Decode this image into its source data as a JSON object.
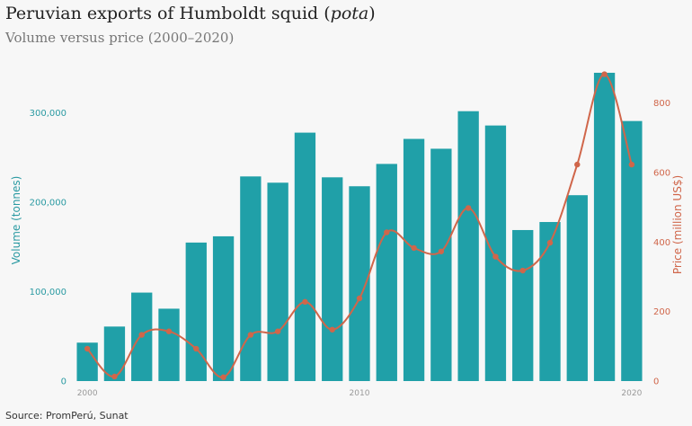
{
  "header": {
    "title_main": "Peruvian exports of Humboldt squid (",
    "title_italic": "pota",
    "title_end": ")",
    "subtitle": "Volume versus price (2000–2020)"
  },
  "footer": {
    "source": "Source: PromPerú, Sunat"
  },
  "colors": {
    "bar": "#20a0a8",
    "line": "#d0664a",
    "left_axis": "#2a9aa2",
    "right_axis": "#d0664a"
  },
  "chart_data": {
    "type": "bar",
    "x": [
      2000,
      2001,
      2002,
      2003,
      2004,
      2005,
      2006,
      2007,
      2008,
      2009,
      2010,
      2011,
      2012,
      2013,
      2014,
      2015,
      2016,
      2017,
      2018,
      2019,
      2020
    ],
    "xlabel": "",
    "x_ticks": [
      "2000",
      "2010",
      "2020"
    ],
    "x_tick_values": [
      2000,
      2010,
      2020
    ],
    "series": [
      {
        "name": "Volume (tonnes)",
        "type": "bar",
        "axis": "left",
        "values": [
          43000,
          61000,
          99000,
          81000,
          155000,
          162000,
          229000,
          222000,
          278000,
          228000,
          218000,
          243000,
          271000,
          260000,
          302000,
          286000,
          169000,
          178000,
          208000,
          345000,
          291000
        ]
      },
      {
        "name": "Price (million US$)",
        "type": "line",
        "axis": "right",
        "values": [
          93,
          13,
          133,
          143,
          93,
          11,
          133,
          143,
          228,
          148,
          238,
          428,
          383,
          373,
          498,
          358,
          318,
          398,
          623,
          883,
          623
        ]
      }
    ],
    "ylabel": "Volume (tonnes)",
    "ylim": [
      0,
      350000
    ],
    "y_ticks": [
      "0",
      "100,000",
      "200,000",
      "300,000"
    ],
    "y_tick_values": [
      0,
      100000,
      200000,
      300000
    ],
    "y2label": "Price (million US$)",
    "y2lim": [
      0,
      900
    ],
    "y2_ticks": [
      "0",
      "200",
      "400",
      "600",
      "800"
    ],
    "y2_tick_values": [
      0,
      200,
      400,
      600,
      800
    ],
    "grid": false,
    "legend": "none"
  }
}
